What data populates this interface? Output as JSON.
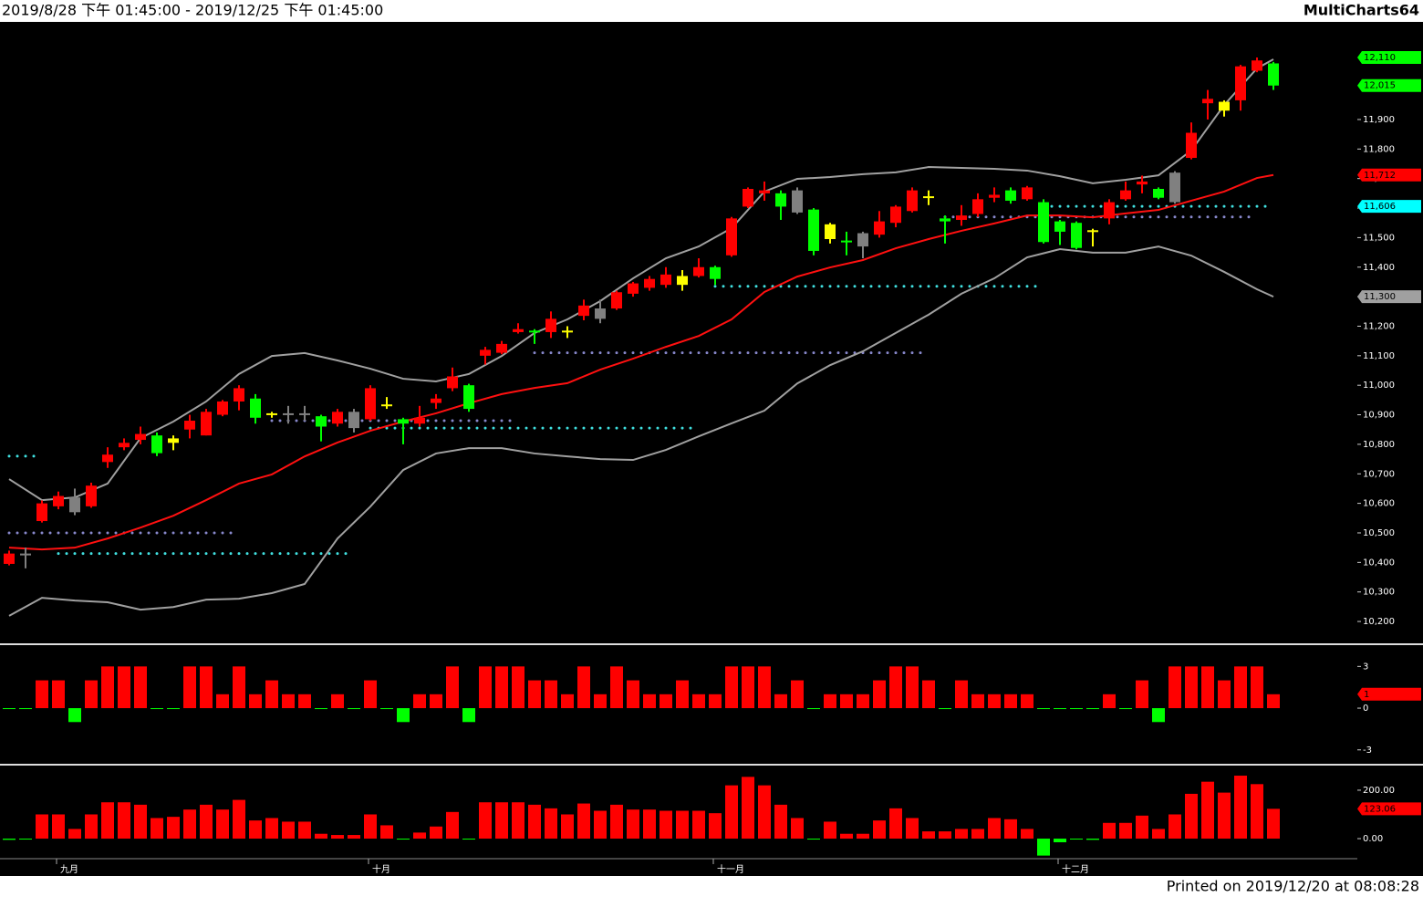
{
  "header": {
    "range": "2019/8/28 下午 01:45:00 - 2019/12/25 下午 01:45:00",
    "app": "MultiCharts64"
  },
  "footer": "Printed on 2019/12/20 at 08:08:28",
  "chart_data": [
    {
      "type": "candlestick",
      "categories": [
        null,
        null,
        null,
        "九月",
        null,
        null,
        null,
        null,
        null,
        null,
        null,
        null,
        null,
        null,
        null,
        null,
        null,
        null,
        null,
        null,
        null,
        null,
        "十月",
        null,
        null,
        null,
        null,
        null,
        null,
        null,
        null,
        null,
        null,
        null,
        null,
        null,
        null,
        null,
        null,
        null,
        null,
        null,
        null,
        "十一月",
        null,
        null,
        null,
        null,
        null,
        null,
        null,
        null,
        null,
        null,
        null,
        null,
        null,
        null,
        null,
        null,
        null,
        null,
        null,
        null,
        "十二月",
        null,
        null,
        null,
        null,
        null,
        null,
        null,
        null,
        null,
        null,
        null,
        null,
        null
      ],
      "open": [
        10395,
        10430,
        10540,
        10590,
        10620,
        10590,
        10740,
        10790,
        10815,
        10830,
        10820,
        10850,
        10830,
        10900,
        10945,
        10955,
        10905,
        10905,
        10905,
        10895,
        10870,
        10910,
        10885,
        10935,
        10885,
        10870,
        10940,
        10990,
        11000,
        11100,
        11110,
        11180,
        11185,
        11180,
        11185,
        11235,
        11260,
        11260,
        11310,
        11330,
        11340,
        11370,
        11370,
        11400,
        11440,
        11605,
        11650,
        11650,
        11660,
        11595,
        11545,
        11490,
        11515,
        11510,
        11550,
        11590,
        11640,
        11565,
        11560,
        11580,
        11635,
        11660,
        11630,
        11620,
        11555,
        11550,
        11525,
        11565,
        11630,
        11680,
        11665,
        11620,
        11770,
        11955,
        11960,
        11965,
        12065,
        12090
      ],
      "high": [
        10440,
        10450,
        10610,
        10640,
        10650,
        10670,
        10790,
        10820,
        10860,
        10840,
        10830,
        10900,
        10920,
        10950,
        11000,
        10970,
        10910,
        10930,
        10930,
        10900,
        10920,
        10920,
        11000,
        10960,
        10890,
        10930,
        10970,
        11060,
        11005,
        11130,
        11150,
        11210,
        11190,
        11250,
        11200,
        11290,
        11290,
        11320,
        11350,
        11370,
        11400,
        11390,
        11430,
        11405,
        11570,
        11670,
        11690,
        11660,
        11670,
        11600,
        11550,
        11520,
        11520,
        11590,
        11610,
        11670,
        11660,
        11575,
        11610,
        11650,
        11670,
        11670,
        11675,
        11630,
        11560,
        11555,
        11530,
        11630,
        11690,
        11710,
        11670,
        11725,
        11890,
        12000,
        11965,
        12085,
        12110,
        12095
      ],
      "low": [
        10390,
        10380,
        10535,
        10580,
        10560,
        10585,
        10720,
        10780,
        10800,
        10760,
        10780,
        10820,
        10830,
        10895,
        10915,
        10870,
        10890,
        10870,
        10880,
        10810,
        10860,
        10840,
        10880,
        10920,
        10800,
        10860,
        10920,
        10980,
        10910,
        11070,
        11105,
        11175,
        11140,
        11160,
        11160,
        11220,
        11210,
        11255,
        11300,
        11320,
        11330,
        11320,
        11365,
        11340,
        11435,
        11600,
        11625,
        11560,
        11580,
        11440,
        11480,
        11440,
        11430,
        11500,
        11535,
        11585,
        11610,
        11480,
        11540,
        11570,
        11620,
        11615,
        11625,
        11480,
        11475,
        11460,
        11470,
        11545,
        11625,
        11650,
        11630,
        11615,
        11765,
        11900,
        11910,
        11930,
        12060,
        12000
      ],
      "close": [
        10430,
        10425,
        10600,
        10625,
        10570,
        10660,
        10765,
        10805,
        10835,
        10770,
        10805,
        10880,
        10910,
        10945,
        10990,
        10890,
        10900,
        10900,
        10900,
        10860,
        10910,
        10855,
        10990,
        10930,
        10870,
        10890,
        10955,
        11030,
        10920,
        11120,
        11140,
        11190,
        11180,
        11225,
        11180,
        11270,
        11225,
        11315,
        11345,
        11360,
        11375,
        11340,
        11400,
        11360,
        11565,
        11665,
        11660,
        11605,
        11585,
        11455,
        11495,
        11485,
        11470,
        11555,
        11605,
        11660,
        11635,
        11555,
        11575,
        11630,
        11645,
        11625,
        11670,
        11485,
        11520,
        11465,
        11520,
        11620,
        11660,
        11690,
        11635,
        11720,
        11855,
        11970,
        11930,
        12080,
        12100,
        12015
      ],
      "colors": [
        "#ff0000",
        "#808080",
        "#ff0000",
        "#ff0000",
        "#808080",
        "#ff0000",
        "#ff0000",
        "#ff0000",
        "#ff0000",
        "#00ff00",
        "#ffff00",
        "#ff0000",
        "#ff0000",
        "#ff0000",
        "#ff0000",
        "#00ff00",
        "#ffff00",
        "#808080",
        "#808080",
        "#00ff00",
        "#ff0000",
        "#808080",
        "#ff0000",
        "#ffff00",
        "#00ff00",
        "#ff0000",
        "#ff0000",
        "#ff0000",
        "#00ff00",
        "#ff0000",
        "#ff0000",
        "#ff0000",
        "#00ff00",
        "#ff0000",
        "#ffff00",
        "#ff0000",
        "#808080",
        "#ff0000",
        "#ff0000",
        "#ff0000",
        "#ff0000",
        "#ffff00",
        "#ff0000",
        "#00ff00",
        "#ff0000",
        "#ff0000",
        "#ff0000",
        "#00ff00",
        "#808080",
        "#00ff00",
        "#ffff00",
        "#00ff00",
        "#808080",
        "#ff0000",
        "#ff0000",
        "#ff0000",
        "#ffff00",
        "#00ff00",
        "#ff0000",
        "#ff0000",
        "#ff0000",
        "#00ff00",
        "#ff0000",
        "#00ff00",
        "#00ff00",
        "#00ff00",
        "#ffff00",
        "#ff0000",
        "#ff0000",
        "#ff0000",
        "#00ff00",
        "#808080",
        "#ff0000",
        "#ff0000",
        "#ffff00",
        "#ff0000",
        "#ff0000",
        "#00ff00"
      ],
      "lines": [
        {
          "color": "#a0a0a0",
          "x": [
            0,
            2,
            4,
            6,
            8,
            10,
            12,
            14,
            16,
            18,
            20,
            22,
            24,
            26,
            28,
            30,
            32,
            34,
            36,
            38,
            40,
            42,
            44,
            46,
            48,
            50,
            52,
            54,
            56,
            58,
            60,
            62,
            64,
            66,
            68,
            70,
            72,
            74,
            76,
            77
          ],
          "values": [
            10682,
            10611,
            10620,
            10667,
            10821,
            10877,
            10945,
            11038,
            11099,
            11109,
            11084,
            11056,
            11022,
            11013,
            11038,
            11099,
            11177,
            11223,
            11285,
            11362,
            11430,
            11470,
            11532,
            11656,
            11699,
            11705,
            11715,
            11721,
            11739,
            11736,
            11733,
            11727,
            11708,
            11684,
            11696,
            11711,
            11795,
            11949,
            12073,
            12104
          ]
        },
        {
          "color": "#a0a0a0",
          "x": [
            0,
            2,
            4,
            6,
            8,
            10,
            12,
            14,
            16,
            18,
            20,
            22,
            24,
            26,
            28,
            30,
            32,
            34,
            36,
            38,
            40,
            42,
            44,
            46,
            48,
            50,
            52,
            54,
            56,
            58,
            60,
            62,
            64,
            66,
            68,
            70,
            72,
            74,
            76,
            77
          ],
          "values": [
            10219,
            10280,
            10271,
            10265,
            10240,
            10249,
            10274,
            10277,
            10296,
            10327,
            10481,
            10589,
            10713,
            10769,
            10787,
            10787,
            10769,
            10759,
            10750,
            10747,
            10781,
            10827,
            10871,
            10914,
            11006,
            11068,
            11115,
            11177,
            11239,
            11310,
            11362,
            11433,
            11461,
            11449,
            11449,
            11470,
            11439,
            11384,
            11325,
            11300
          ]
        },
        {
          "color": "#ff1010",
          "x": [
            0,
            2,
            4,
            6,
            8,
            10,
            12,
            14,
            16,
            18,
            20,
            22,
            24,
            26,
            28,
            30,
            32,
            34,
            36,
            38,
            40,
            42,
            44,
            46,
            48,
            50,
            52,
            54,
            56,
            58,
            60,
            62,
            64,
            66,
            68,
            70,
            72,
            74,
            76,
            77
          ],
          "values": [
            10450,
            10444,
            10450,
            10481,
            10518,
            10558,
            10611,
            10667,
            10698,
            10759,
            10806,
            10846,
            10877,
            10905,
            10939,
            10970,
            10991,
            11007,
            11053,
            11090,
            11130,
            11167,
            11223,
            11316,
            11368,
            11399,
            11424,
            11464,
            11495,
            11523,
            11548,
            11575,
            11575,
            11569,
            11582,
            11594,
            11625,
            11656,
            11702,
            11712
          ]
        }
      ],
      "levels": [
        {
          "color": "#40e0e0",
          "value": 10760,
          "x": [
            0,
            2
          ]
        },
        {
          "color": "#8888cc",
          "value": 10500,
          "x": [
            0,
            14
          ]
        },
        {
          "color": "#40e0e0",
          "value": 10430,
          "x": [
            3,
            21
          ]
        },
        {
          "color": "#8888cc",
          "value": 10880,
          "x": [
            16,
            31
          ]
        },
        {
          "color": "#40e0e0",
          "value": 10855,
          "x": [
            22,
            42
          ]
        },
        {
          "color": "#8888cc",
          "value": 11110,
          "x": [
            32,
            56
          ]
        },
        {
          "color": "#40e0e0",
          "value": 11335,
          "x": [
            43,
            63
          ]
        },
        {
          "color": "#8888cc",
          "value": 11570,
          "x": [
            57,
            76
          ]
        },
        {
          "color": "#40e0e0",
          "value": 11606,
          "x": [
            63,
            77
          ]
        }
      ],
      "tags": [
        {
          "value": 12110,
          "label": "12,110",
          "color": "#00ff00"
        },
        {
          "value": 12015,
          "label": "12,015",
          "color": "#00ff00"
        },
        {
          "value": 11712,
          "label": "11,712",
          "color": "#ff0000"
        },
        {
          "value": 11606,
          "label": "11,606",
          "color": "#00ffff"
        },
        {
          "value": 11300,
          "label": "11,300",
          "color": "#a0a0a0"
        }
      ],
      "ylim": [
        10126,
        12212
      ],
      "yticks": [
        {
          "value": 10200,
          "label": "10,200"
        },
        {
          "value": 10300,
          "label": "10,300"
        },
        {
          "value": 10400,
          "label": "10,400"
        },
        {
          "value": 10500,
          "label": "10,500"
        },
        {
          "value": 10600,
          "label": "10,600"
        },
        {
          "value": 10700,
          "label": "10,700"
        },
        {
          "value": 10800,
          "label": "10,800"
        },
        {
          "value": 10900,
          "label": "10,900"
        },
        {
          "value": 11000,
          "label": "11,000"
        },
        {
          "value": 11100,
          "label": "11,100"
        },
        {
          "value": 11200,
          "label": "11,200"
        },
        {
          "value": 11300,
          "label": "11,300"
        },
        {
          "value": 11400,
          "label": "11,400"
        },
        {
          "value": 11500,
          "label": "11,500"
        },
        {
          "value": 11600,
          "label": "11,600"
        },
        {
          "value": 11700,
          "label": "11,700"
        },
        {
          "value": 11800,
          "label": "11,800"
        },
        {
          "value": 11900,
          "label": "11,900"
        }
      ]
    },
    {
      "type": "bar",
      "values": [
        0,
        0,
        2,
        2,
        -1,
        2,
        3,
        3,
        3,
        0,
        0,
        3,
        3,
        1,
        3,
        1,
        2,
        1,
        1,
        0,
        1,
        0,
        2,
        0,
        -1,
        1,
        1,
        3,
        -1,
        3,
        3,
        3,
        2,
        2,
        1,
        3,
        1,
        3,
        2,
        1,
        1,
        2,
        1,
        1,
        3,
        3,
        3,
        1,
        2,
        0,
        1,
        1,
        1,
        2,
        3,
        3,
        2,
        0,
        2,
        1,
        1,
        1,
        1,
        0,
        0,
        0,
        0,
        1,
        0,
        2,
        -1,
        3,
        3,
        3,
        2,
        3,
        3,
        1
      ],
      "up_color": "#ff0000",
      "down_color": "#00ff00",
      "tags": [
        {
          "value": 1,
          "label": "1",
          "color": "#ff0000"
        }
      ],
      "ylim": [
        -4,
        4.4
      ],
      "yticks": [
        3,
        0,
        -3
      ]
    },
    {
      "type": "bar",
      "values": [
        -5,
        0,
        100,
        100,
        40,
        100,
        150,
        150,
        140,
        85,
        90,
        120,
        140,
        120,
        160,
        75,
        85,
        70,
        70,
        20,
        15,
        15,
        100,
        55,
        0,
        25,
        50,
        110,
        0,
        150,
        150,
        150,
        140,
        125,
        100,
        145,
        115,
        140,
        120,
        120,
        115,
        115,
        115,
        105,
        220,
        255,
        220,
        140,
        85,
        -3,
        70,
        20,
        20,
        75,
        125,
        85,
        30,
        30,
        40,
        40,
        85,
        80,
        40,
        -70,
        -15,
        -3,
        -5,
        65,
        65,
        95,
        40,
        100,
        185,
        235,
        190,
        260,
        225,
        123.06
      ],
      "up_color": "#ff0000",
      "down_color": "#00ff00",
      "tags": [
        {
          "value": 123.06,
          "label": "123.06",
          "color": "#ff0000"
        }
      ],
      "ylim": [
        -79,
        294
      ],
      "yticks": [
        {
          "value": 200,
          "label": "200.00"
        },
        {
          "value": 0,
          "label": "0.00"
        }
      ]
    }
  ]
}
